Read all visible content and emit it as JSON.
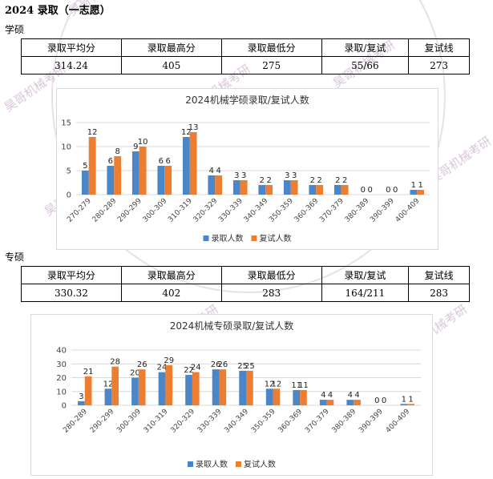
{
  "heading": "2024 录取（一志愿）",
  "xueshuo": {
    "label": "学硕",
    "headers": [
      "录取平均分",
      "录取最高分",
      "录取最低分",
      "录取/复试",
      "复试线"
    ],
    "values": [
      "314.24",
      "405",
      "275",
      "55/66",
      "273"
    ]
  },
  "zhuanshuo": {
    "label": "专硕",
    "headers": [
      "录取平均分",
      "录取最高分",
      "录取最低分",
      "录取/复试",
      "复试线"
    ],
    "values": [
      "330.32",
      "402",
      "283",
      "164/211",
      "283"
    ]
  },
  "watermark_text": "昊哥机械考研",
  "colors": {
    "admitted": "#4a86c8",
    "retest": "#ed7d31",
    "grid": "#d9d9d9",
    "watermark": "#c9a9c9"
  },
  "chart_data": [
    {
      "type": "bar",
      "title": "2024机械学硕录取/复试人数",
      "categories": [
        "270-279",
        "280-289",
        "290-299",
        "300-309",
        "310-319",
        "320-329",
        "330-339",
        "340-349",
        "350-359",
        "360-369",
        "370-379",
        "380-389",
        "390-399",
        "400-409"
      ],
      "series": [
        {
          "name": "录取人数",
          "values": [
            5,
            6,
            9,
            6,
            12,
            4,
            3,
            2,
            3,
            2,
            2,
            0,
            0,
            1
          ]
        },
        {
          "name": "复试人数",
          "values": [
            12,
            8,
            10,
            6,
            13,
            4,
            3,
            2,
            3,
            2,
            2,
            0,
            0,
            1
          ]
        }
      ],
      "ylim": [
        0,
        15
      ],
      "yticks": [
        0,
        5,
        10,
        15
      ],
      "legend": "bottom",
      "grid": true
    },
    {
      "type": "bar",
      "title": "2024机械专硕录取/复试人数",
      "categories": [
        "280-289",
        "290-299",
        "300-309",
        "310-319",
        "320-329",
        "330-339",
        "340-349",
        "350-359",
        "360-369",
        "370-379",
        "380-389",
        "390-399",
        "400-409"
      ],
      "series": [
        {
          "name": "录取人数",
          "values": [
            3,
            12,
            20,
            24,
            22,
            26,
            25,
            12,
            11,
            4,
            4,
            0,
            1
          ]
        },
        {
          "name": "复试人数",
          "values": [
            21,
            28,
            26,
            29,
            24,
            26,
            25,
            12,
            11,
            4,
            4,
            0,
            1
          ]
        }
      ],
      "ylim": [
        0,
        40
      ],
      "yticks": [
        0,
        10,
        20,
        30,
        40
      ],
      "legend": "bottom",
      "grid": true
    }
  ]
}
